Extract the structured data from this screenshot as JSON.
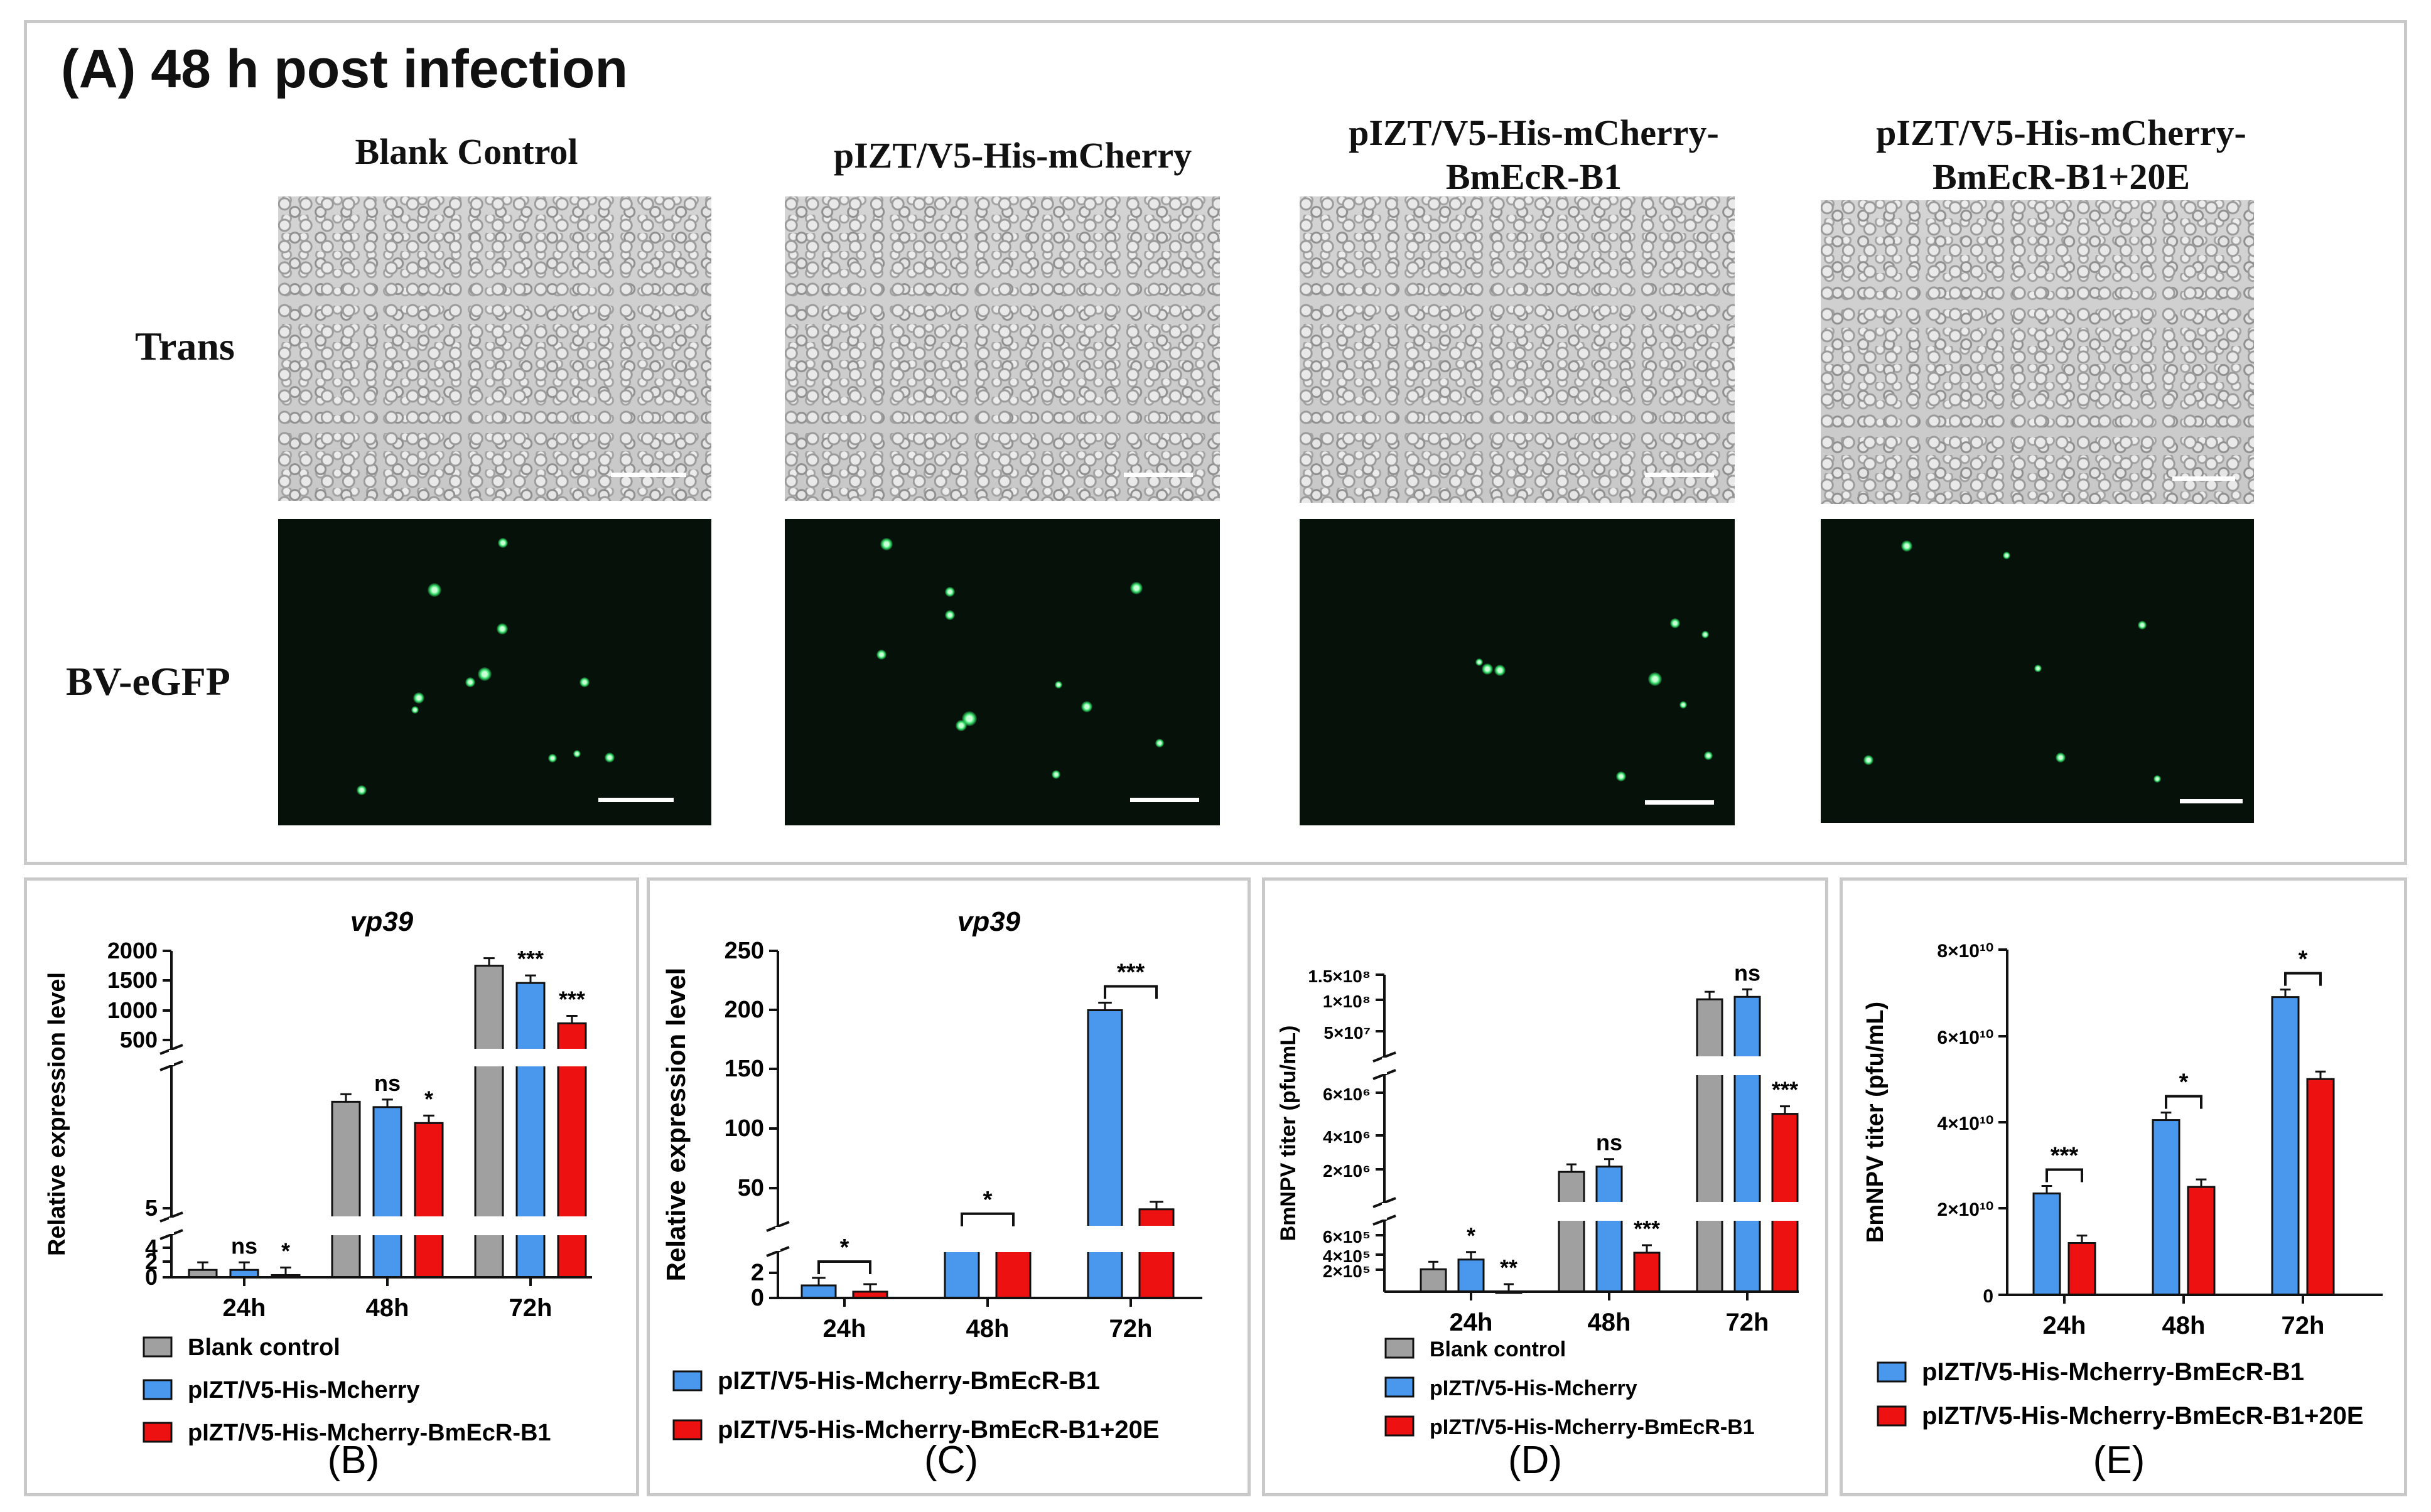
{
  "panelA": {
    "title": "(A) 48 h post infection",
    "columns": [
      "Blank  Control",
      "pIZT/V5-His-mCherry",
      "pIZT/V5-His-mCherry-\nBmEcR-B1",
      "pIZT/V5-His-mCherry-\nBmEcR-B1+20E"
    ],
    "rows": [
      "Trans",
      "BV-eGFP"
    ]
  },
  "colors": {
    "grey": "#a0a0a0",
    "blue": "#4a97ee",
    "red": "#ee1111"
  },
  "chart_data": [
    {
      "panel": "(B)",
      "type": "bar",
      "title": "vp39",
      "ylabel": "Relative expression level",
      "categories": [
        "24h",
        "48h",
        "72h"
      ],
      "y_ticks": [
        "0",
        "2",
        "4",
        "5",
        "500",
        "1000",
        "1500",
        "2000"
      ],
      "series": [
        {
          "name": "Blank control",
          "color": "grey",
          "values": [
            1,
            9,
            1750
          ]
        },
        {
          "name": "pIZT/V5-His-Mcherry",
          "color": "blue",
          "values": [
            1,
            8.8,
            1460
          ]
        },
        {
          "name": "pIZT/V5-His-Mcherry-BmEcR-B1",
          "color": "red",
          "values": [
            0.3,
            8.2,
            780
          ]
        }
      ],
      "annotations": [
        {
          "cat": 0,
          "series": 1,
          "text": "ns"
        },
        {
          "cat": 0,
          "series": 2,
          "text": "*"
        },
        {
          "cat": 1,
          "series": 1,
          "text": "ns"
        },
        {
          "cat": 1,
          "series": 2,
          "text": "*"
        },
        {
          "cat": 2,
          "series": 1,
          "text": "***"
        },
        {
          "cat": 2,
          "series": 2,
          "text": "***"
        }
      ]
    },
    {
      "panel": "(C)",
      "type": "bar",
      "title": "vp39",
      "ylabel": "Relative expression level",
      "categories": [
        "24h",
        "48h",
        "72h"
      ],
      "y_ticks": [
        "0",
        "2",
        "50",
        "100",
        "150",
        "200",
        "250"
      ],
      "series": [
        {
          "name": "pIZT/V5-His-Mcherry-BmEcR-B1",
          "color": "blue",
          "values": [
            1,
            22,
            200
          ]
        },
        {
          "name": "pIZT/V5-His-Mcherry-BmEcR-B1+20E",
          "color": "red",
          "values": [
            0.5,
            17,
            38
          ]
        }
      ],
      "annotations": [
        {
          "cat": 0,
          "text": "*"
        },
        {
          "cat": 1,
          "text": "*"
        },
        {
          "cat": 2,
          "text": "***"
        }
      ]
    },
    {
      "panel": "(D)",
      "type": "bar",
      "ylabel": "BmNPV titer (pfu/mL)",
      "categories": [
        "24h",
        "48h",
        "72h"
      ],
      "y_ticks": [
        "2×10⁵",
        "4×10⁵",
        "6×10⁵",
        "2×10⁶",
        "4×10⁶",
        "6×10⁶",
        "5×10⁷",
        "1×10⁸",
        "1.5×10⁸"
      ],
      "series": [
        {
          "name": "Blank control",
          "color": "grey",
          "values": [
            250000,
            3000000,
            120000000
          ]
        },
        {
          "name": "pIZT/V5-His-Mcherry",
          "color": "blue",
          "values": [
            350000,
            3200000,
            123000000
          ]
        },
        {
          "name": "pIZT/V5-His-Mcherry-BmEcR-B1",
          "color": "red",
          "values": [
            20000,
            420000,
            5200000
          ]
        }
      ],
      "annotations": [
        {
          "cat": 0,
          "series": 1,
          "text": "*"
        },
        {
          "cat": 0,
          "series": 2,
          "text": "**"
        },
        {
          "cat": 1,
          "series": 1,
          "text": "ns"
        },
        {
          "cat": 1,
          "series": 2,
          "text": "***"
        },
        {
          "cat": 2,
          "series": 1,
          "text": "ns"
        },
        {
          "cat": 2,
          "series": 2,
          "text": "***"
        }
      ]
    },
    {
      "panel": "(E)",
      "type": "bar",
      "ylabel": "BmNPV titer (pfu/mL)",
      "categories": [
        "24h",
        "48h",
        "72h"
      ],
      "y_ticks": [
        "0",
        "2×10¹⁰",
        "4×10¹⁰",
        "6×10¹⁰",
        "8×10¹⁰"
      ],
      "ylim": [
        0,
        80000000000
      ],
      "series": [
        {
          "name": "pIZT/V5-His-Mcherry-BmEcR-B1",
          "color": "blue",
          "values": [
            23500000000,
            40500000000,
            69000000000
          ]
        },
        {
          "name": "pIZT/V5-His-Mcherry-BmEcR-B1+20E",
          "color": "red",
          "values": [
            12000000000,
            25000000000,
            50000000000
          ]
        }
      ],
      "annotations": [
        {
          "cat": 0,
          "text": "***"
        },
        {
          "cat": 1,
          "text": "*"
        },
        {
          "cat": 2,
          "text": "*"
        }
      ]
    }
  ]
}
